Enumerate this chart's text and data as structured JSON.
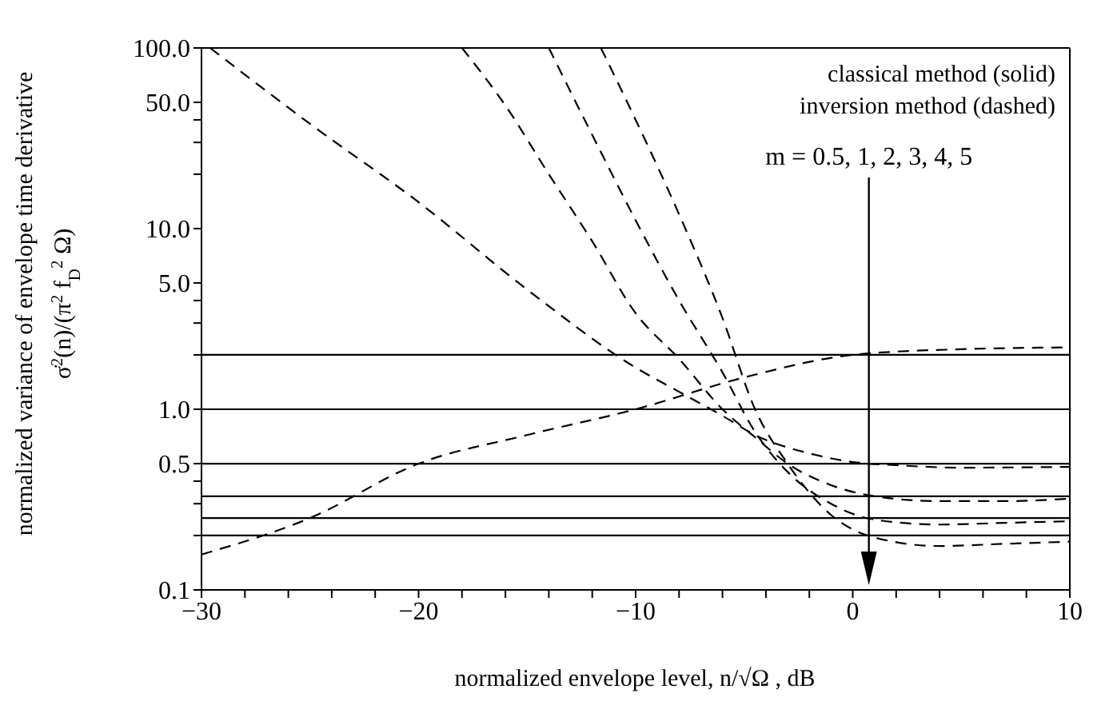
{
  "chart_data": {
    "type": "line",
    "xlabel": "normalized envelope level, n/√Ω , dB",
    "ylabel": "normalized variance of envelope time derivative\nσ̇$^{2}$(n)/(π$^{2}$ f$_{D}$$^{2}$ Ω)",
    "annotations": [
      "classical method (solid)",
      "inversion method (dashed)",
      "m = 0.5, 1, 2, 3, 4, 5"
    ],
    "log": "y",
    "marker": "none",
    "xlim": [
      -30,
      10
    ],
    "xticks": [
      {
        "value": -30,
        "label": "−30"
      },
      {
        "value": -28,
        "label": null
      },
      {
        "value": -26,
        "label": null
      },
      {
        "value": -24,
        "label": null
      },
      {
        "value": -22,
        "label": null
      },
      {
        "value": -20,
        "label": "−20"
      },
      {
        "value": -18,
        "label": null
      },
      {
        "value": -16,
        "label": null
      },
      {
        "value": -14,
        "label": null
      },
      {
        "value": -12,
        "label": null
      },
      {
        "value": -10,
        "label": "−10"
      },
      {
        "value": -8,
        "label": null
      },
      {
        "value": -6,
        "label": null
      },
      {
        "value": -4,
        "label": null
      },
      {
        "value": -2,
        "label": null
      },
      0,
      {
        "value": 2,
        "label": null
      },
      {
        "value": 4,
        "label": null
      },
      {
        "value": 6,
        "label": null
      },
      {
        "value": 8,
        "label": null
      },
      10
    ],
    "ylim": [
      0.1,
      100
    ],
    "yticks": [
      0.1,
      {
        "value": 0.2,
        "label": null
      },
      {
        "value": 0.3,
        "label": null
      },
      {
        "value": 0.4,
        "label": null
      },
      0.5,
      {
        "value": 1,
        "label": "1.0"
      },
      {
        "value": 2,
        "label": null
      },
      {
        "value": 3,
        "label": null
      },
      {
        "value": 4,
        "label": null
      },
      {
        "value": 5,
        "label": "5.0"
      },
      {
        "value": 10,
        "label": "10.0"
      },
      {
        "value": 20,
        "label": null
      },
      {
        "value": 30,
        "label": null
      },
      {
        "value": 40,
        "label": null
      },
      {
        "value": 50,
        "label": "50.0"
      },
      {
        "value": 100,
        "label": "100.0"
      }
    ],
    "series": [
      {
        "color": "#000000",
        "line_style": "solid",
        "x": [
          -30,
          10
        ],
        "values": [
          2,
          2
        ]
      },
      {
        "color": "#000000",
        "line_style": "solid",
        "x": [
          -30,
          10
        ],
        "values": [
          1,
          1
        ]
      },
      {
        "color": "#000000",
        "line_style": "solid",
        "x": [
          -30,
          10
        ],
        "values": [
          0.5,
          0.5
        ]
      },
      {
        "color": "#000000",
        "line_style": "solid",
        "x": [
          -30,
          10
        ],
        "values": [
          0.33,
          0.33
        ]
      },
      {
        "color": "#000000",
        "line_style": "solid",
        "x": [
          -30,
          10
        ],
        "values": [
          0.25,
          0.25
        ]
      },
      {
        "color": "#000000",
        "line_style": "solid",
        "x": [
          -30,
          10
        ],
        "values": [
          0.2,
          0.2
        ]
      },
      {
        "color": "#000000",
        "line_style": "dashed",
        "x": [
          -30,
          -25,
          -20,
          -15,
          -10,
          -5,
          0,
          5,
          10
        ],
        "values": [
          0.157,
          0.25,
          0.5,
          0.72,
          1.0,
          1.5,
          2.0,
          2.15,
          2.2
        ]
      },
      {
        "color": "#000000",
        "line_style": "dashed",
        "x": [
          -29.6,
          -25,
          -20,
          -15,
          -10,
          -8,
          -6,
          -4.5,
          -2,
          0,
          2,
          5,
          10
        ],
        "values": [
          100,
          38,
          14,
          4.6,
          1.7,
          1.25,
          0.92,
          0.72,
          0.57,
          0.51,
          0.49,
          0.475,
          0.48
        ]
      },
      {
        "color": "#000000",
        "line_style": "dashed",
        "x": [
          -18,
          -16,
          -14,
          -12,
          -10,
          -8,
          -6,
          -4.5,
          -3,
          -1,
          1,
          4,
          7,
          10
        ],
        "values": [
          100,
          48,
          20,
          8.5,
          3.4,
          1.9,
          1,
          0.7,
          0.5,
          0.38,
          0.33,
          0.31,
          0.31,
          0.32
        ]
      },
      {
        "color": "#000000",
        "line_style": "dashed",
        "x": [
          -14,
          -12,
          -9.8,
          -8,
          -6,
          -4.5,
          -3,
          -1,
          1,
          4,
          7,
          10
        ],
        "values": [
          100,
          33,
          10,
          4,
          1.6,
          0.75,
          0.45,
          0.3,
          0.245,
          0.23,
          0.235,
          0.24
        ]
      },
      {
        "color": "#000000",
        "line_style": "dashed",
        "x": [
          -11.6,
          -10,
          -8,
          -6,
          -4.5,
          -3,
          -1,
          1,
          4,
          7,
          10
        ],
        "values": [
          100,
          40,
          12,
          3.2,
          1,
          0.5,
          0.26,
          0.195,
          0.175,
          0.18,
          0.185
        ]
      }
    ]
  }
}
